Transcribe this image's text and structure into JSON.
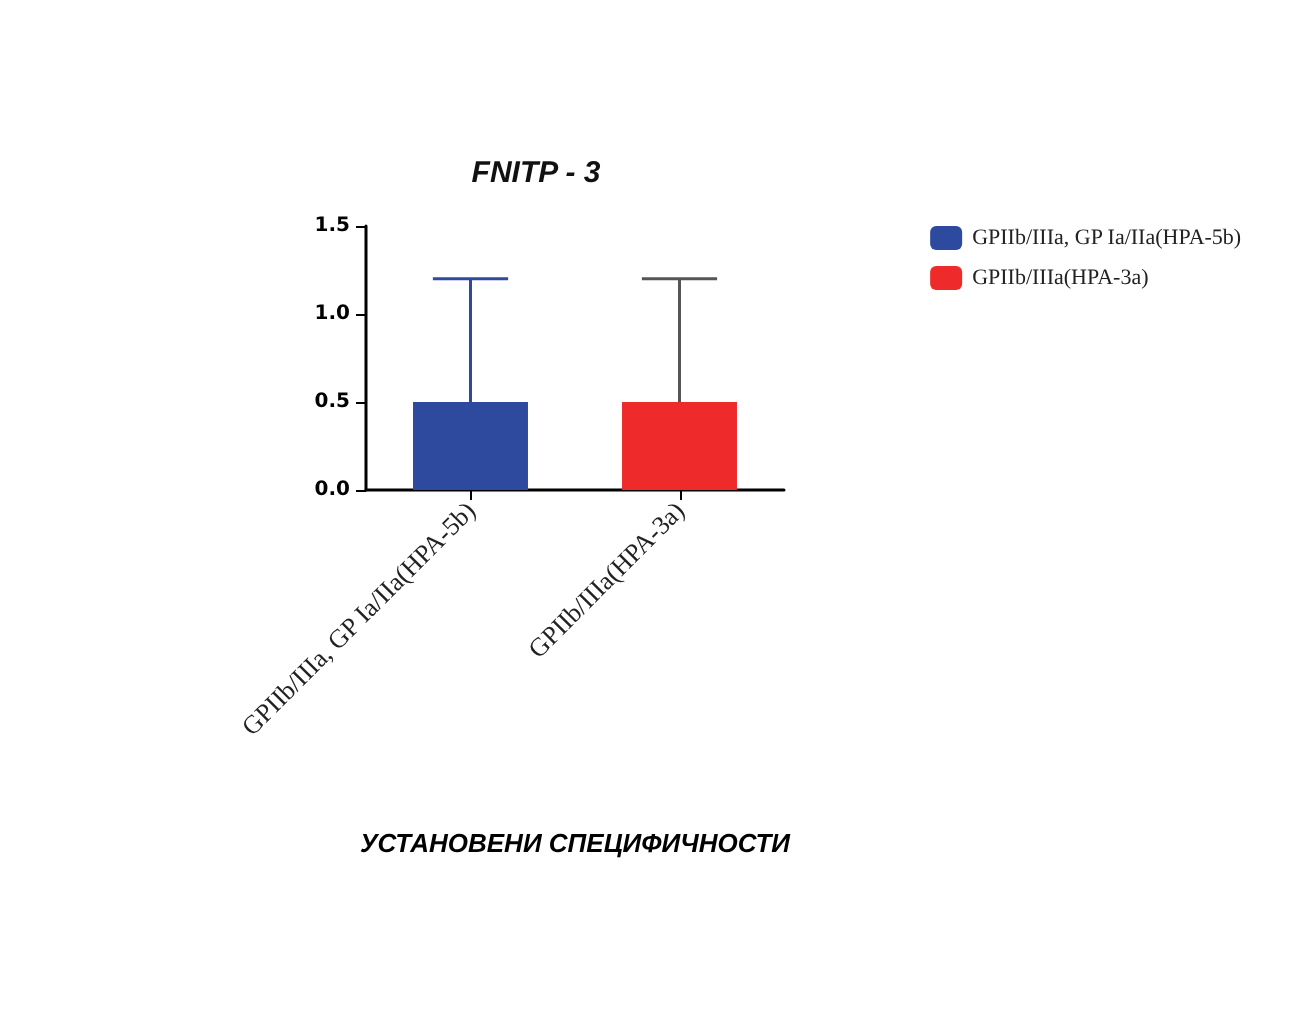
{
  "chart_data": {
    "type": "bar",
    "title": "FNITP - 3",
    "xlabel": "УСТАНОВЕНИ СПЕЦИФИЧНОСТИ",
    "categories": [
      "GPIIb/IIIa, GP Ia/IIa(HPA-5b)",
      "GPIIb/IIIa(HPA-3a)"
    ],
    "series": [
      {
        "name": "GPIIb/IIIa, GP Ia/IIa(HPA-5b)",
        "color": "#2e4a9e",
        "values": [
          0.5,
          null
        ],
        "errors": [
          [
            0.5,
            1.2
          ],
          null
        ]
      },
      {
        "name": "GPIIb/IIIa(HPA-3a)",
        "color": "#ee2a2a",
        "values": [
          null,
          0.5
        ],
        "errors": [
          null,
          [
            0.5,
            1.2
          ]
        ]
      }
    ],
    "ylim": [
      0,
      1.5
    ],
    "yticks": [
      {
        "value": 0,
        "label": "0.0"
      },
      {
        "value": 0.5,
        "label": "0.5"
      },
      {
        "value": 1,
        "label": "1.0"
      },
      {
        "value": 1.5,
        "label": "1.5"
      }
    ],
    "grid": false,
    "legend": "top right"
  }
}
